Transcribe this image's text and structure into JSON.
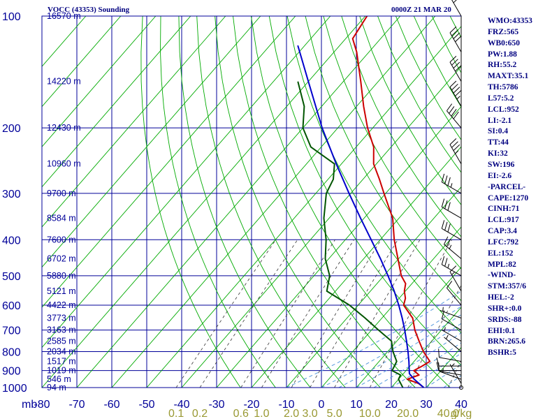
{
  "header": {
    "station": "VOCC (43353) Sounding",
    "time": "0000Z 21 MAR 20"
  },
  "indices": [
    {
      "label": "WMO:43353"
    },
    {
      "label": "FRZ:565"
    },
    {
      "label": "WB0:650"
    },
    {
      "label": "PW:1.88"
    },
    {
      "label": "RH:55.2"
    },
    {
      "label": "MAXT:35.1"
    },
    {
      "label": "TH:5786"
    },
    {
      "label": "L57:5.2"
    },
    {
      "label": "LCL:952"
    },
    {
      "label": "LI:-2.1"
    },
    {
      "label": "SI:0.4"
    },
    {
      "label": "TT:44"
    },
    {
      "label": "KI:32"
    },
    {
      "label": "SW:196"
    },
    {
      "label": "EI:-2.6"
    },
    {
      "label": "-PARCEL-"
    },
    {
      "label": "CAPE:1270"
    },
    {
      "label": "CINH:71"
    },
    {
      "label": "LCL:917"
    },
    {
      "label": "CAP:3.4"
    },
    {
      "label": "LFC:792"
    },
    {
      "label": "EL:152"
    },
    {
      "label": "MPL:82"
    },
    {
      "label": "-WIND-"
    },
    {
      "label": "STM:357/6"
    },
    {
      "label": "HEL:-2"
    },
    {
      "label": "SHR+:0.0"
    },
    {
      "label": "SRDS:-88"
    },
    {
      "label": "EHI:0.1"
    },
    {
      "label": "BRN:265.6"
    },
    {
      "label": "BSHR:5"
    }
  ],
  "chart_data": {
    "type": "line",
    "colors": {
      "grid": "#000099",
      "isotherm": "#00aa00",
      "mixing_ratio": "#333333",
      "moist_adiabat": "#5599dd",
      "temperature": "#cc0000",
      "dewpoint": "#005500",
      "parcel": "#0000cc",
      "wind": "#000000"
    },
    "pressure_axis": {
      "ticks": [
        100,
        200,
        300,
        400,
        500,
        600,
        700,
        800,
        900,
        1000
      ],
      "range": [
        100,
        1000
      ],
      "scale": "log"
    },
    "height_labels": [
      {
        "p": 100,
        "label": "16570 m"
      },
      {
        "p": 150,
        "label": "14220 m"
      },
      {
        "p": 200,
        "label": "12430 m"
      },
      {
        "p": 250,
        "label": "10960 m"
      },
      {
        "p": 300,
        "label": "9700 m"
      },
      {
        "p": 350,
        "label": "8584 m"
      },
      {
        "p": 400,
        "label": "7600 m"
      },
      {
        "p": 450,
        "label": "6702 m"
      },
      {
        "p": 500,
        "label": "5880 m"
      },
      {
        "p": 550,
        "label": "5121 m"
      },
      {
        "p": 600,
        "label": "4422 m"
      },
      {
        "p": 650,
        "label": "3773 m"
      },
      {
        "p": 700,
        "label": "3163 m"
      },
      {
        "p": 750,
        "label": "2585 m"
      },
      {
        "p": 800,
        "label": "2034 m"
      },
      {
        "p": 850,
        "label": "1517 m"
      },
      {
        "p": 900,
        "label": "1019 m"
      },
      {
        "p": 950,
        "label": "546 m"
      },
      {
        "p": 1000,
        "label": "94 m"
      }
    ],
    "temperature_axis": {
      "unit_label": "mb",
      "ticks": [
        -80,
        -70,
        -60,
        -50,
        -40,
        -30,
        -20,
        -10,
        0,
        10,
        20,
        30,
        40
      ],
      "tick_labels": [
        "-80",
        "-70",
        "-60",
        "-50",
        "-40",
        "-30",
        "-20",
        "-10",
        "0",
        "10",
        "20",
        "30",
        "40"
      ],
      "range": [
        -80,
        40
      ]
    },
    "mixing_ratio_labels": [
      {
        "value": 0.1,
        "label": "0.1"
      },
      {
        "value": 0.2,
        "label": "0.2"
      },
      {
        "value": 0.6,
        "label": "0.6"
      },
      {
        "value": 1.0,
        "label": "1.0"
      },
      {
        "value": 2.0,
        "label": "2.0"
      },
      {
        "value": 3.0,
        "label": "3.0"
      },
      {
        "value": 5.0,
        "label": "5.0"
      },
      {
        "value": 10.0,
        "label": "10.0"
      },
      {
        "value": 20.0,
        "label": "20.0"
      },
      {
        "value": 40.0,
        "label": "40.0"
      }
    ],
    "mixing_ratio_unit": "g/kg",
    "series": [
      {
        "key": "temperature",
        "points": [
          [
            1000,
            29.3
          ],
          [
            975,
            26.8
          ],
          [
            950,
            22.5
          ],
          [
            925,
            24.8
          ],
          [
            900,
            22.2
          ],
          [
            875,
            23.5
          ],
          [
            850,
            24.5
          ],
          [
            800,
            20.2
          ],
          [
            750,
            16.4
          ],
          [
            700,
            12.4
          ],
          [
            650,
            8.8
          ],
          [
            600,
            3.0
          ],
          [
            575,
            1.8
          ],
          [
            550,
            -0.3
          ],
          [
            525,
            -1.8
          ],
          [
            500,
            -5.0
          ],
          [
            450,
            -10.2
          ],
          [
            400,
            -16.0
          ],
          [
            350,
            -21.8
          ],
          [
            300,
            -30.5
          ],
          [
            275,
            -35.3
          ],
          [
            250,
            -40.8
          ],
          [
            225,
            -45.0
          ],
          [
            200,
            -51.5
          ],
          [
            175,
            -58.0
          ],
          [
            150,
            -65.0
          ],
          [
            125,
            -73.5
          ],
          [
            115,
            -78.0
          ],
          [
            100,
            -79.5
          ]
        ]
      },
      {
        "key": "dewpoint",
        "points": [
          [
            1000,
            23.3
          ],
          [
            950,
            20.0
          ],
          [
            925,
            19.5
          ],
          [
            900,
            16.0
          ],
          [
            850,
            15.0
          ],
          [
            800,
            11.5
          ],
          [
            750,
            8.5
          ],
          [
            700,
            2.0
          ],
          [
            650,
            -4.8
          ],
          [
            600,
            -12.5
          ],
          [
            550,
            -22.5
          ],
          [
            500,
            -25.5
          ],
          [
            450,
            -31.0
          ],
          [
            400,
            -35.5
          ],
          [
            350,
            -41.5
          ],
          [
            300,
            -47.0
          ],
          [
            275,
            -48.5
          ],
          [
            250,
            -52.0
          ],
          [
            225,
            -63.0
          ],
          [
            200,
            -70.0
          ],
          [
            175,
            -75.0
          ],
          [
            150,
            -83.0
          ]
        ]
      },
      {
        "key": "parcel",
        "points": [
          [
            1000,
            29.3
          ],
          [
            950,
            24.5
          ],
          [
            917,
            21.7
          ],
          [
            900,
            20.9
          ],
          [
            850,
            18.5
          ],
          [
            800,
            15.8
          ],
          [
            750,
            12.8
          ],
          [
            700,
            9.5
          ],
          [
            650,
            5.8
          ],
          [
            600,
            1.6
          ],
          [
            550,
            -3.2
          ],
          [
            500,
            -8.8
          ],
          [
            450,
            -15.2
          ],
          [
            400,
            -22.6
          ],
          [
            350,
            -31.0
          ],
          [
            300,
            -40.5
          ],
          [
            250,
            -51.5
          ],
          [
            200,
            -64.5
          ],
          [
            150,
            -80.0
          ],
          [
            120,
            -92.0
          ]
        ]
      }
    ],
    "wind_barbs": [
      {
        "p": 1000,
        "dir": 0,
        "kt": 0
      },
      {
        "p": 975,
        "dir": 330,
        "kt": 5
      },
      {
        "p": 950,
        "dir": 290,
        "kt": 5
      },
      {
        "p": 925,
        "dir": 280,
        "kt": 10
      },
      {
        "p": 900,
        "dir": 270,
        "kt": 10
      },
      {
        "p": 875,
        "dir": 270,
        "kt": 10
      },
      {
        "p": 850,
        "dir": 280,
        "kt": 10
      },
      {
        "p": 800,
        "dir": 310,
        "kt": 5
      },
      {
        "p": 750,
        "dir": 300,
        "kt": 5
      },
      {
        "p": 700,
        "dir": 300,
        "kt": 10
      },
      {
        "p": 650,
        "dir": 290,
        "kt": 5
      },
      {
        "p": 600,
        "dir": 320,
        "kt": 10
      },
      {
        "p": 550,
        "dir": 330,
        "kt": 15
      },
      {
        "p": 500,
        "dir": 300,
        "kt": 25
      },
      {
        "p": 450,
        "dir": 310,
        "kt": 25
      },
      {
        "p": 400,
        "dir": 300,
        "kt": 30
      },
      {
        "p": 350,
        "dir": 300,
        "kt": 30
      },
      {
        "p": 300,
        "dir": 300,
        "kt": 35
      },
      {
        "p": 250,
        "dir": 330,
        "kt": 35
      },
      {
        "p": 200,
        "dir": 320,
        "kt": 40
      },
      {
        "p": 175,
        "dir": 330,
        "kt": 45
      },
      {
        "p": 150,
        "dir": 330,
        "kt": 40
      },
      {
        "p": 125,
        "dir": 330,
        "kt": 40
      },
      {
        "p": 100,
        "dir": 330,
        "kt": 30
      }
    ]
  }
}
